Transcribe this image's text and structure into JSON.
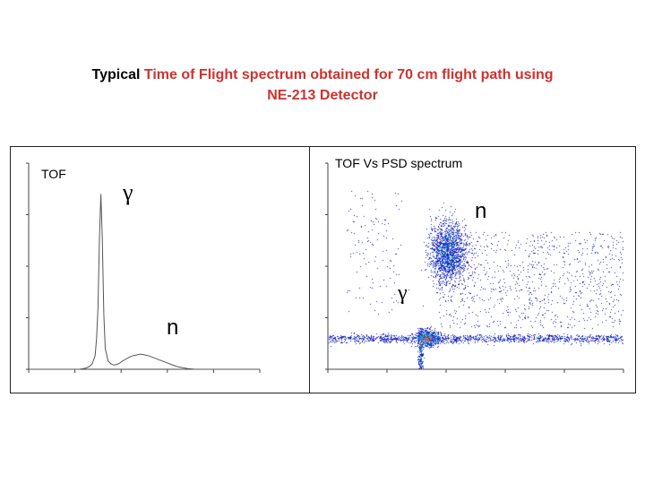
{
  "title": {
    "part1": "Typical ",
    "part2": "Time of Flight spectrum obtained for 70 cm flight path using",
    "line2": "NE-213 Detector"
  },
  "colors": {
    "title_accent": "#d0312d",
    "axis": "#444444",
    "tof_curve": "#555555"
  },
  "chart_data": [
    {
      "type": "line",
      "title": "TOF",
      "annotations": [
        {
          "text": "γ",
          "near": "peak"
        },
        {
          "text": "n",
          "near": "broad bump"
        }
      ],
      "x": [
        0,
        20,
        40,
        60,
        70,
        76,
        80,
        84,
        88,
        92,
        94,
        96,
        98,
        100,
        102,
        104,
        106,
        110,
        114,
        118,
        122,
        126,
        130,
        135,
        140,
        145,
        150,
        155,
        160,
        165,
        170,
        175,
        180,
        185,
        190,
        195,
        200,
        205,
        210,
        215,
        220,
        230,
        240,
        250,
        260,
        280,
        300,
        320
      ],
      "values": [
        0,
        0,
        0,
        0,
        0,
        1,
        2,
        4,
        8,
        20,
        45,
        90,
        190,
        255,
        190,
        80,
        30,
        12,
        8,
        6,
        7,
        9,
        12,
        15,
        18,
        20,
        21,
        22,
        21,
        20,
        18,
        16,
        14,
        12,
        10,
        8,
        6,
        4,
        3,
        2,
        1,
        0,
        0,
        0,
        0,
        0,
        0,
        0
      ],
      "xlim": [
        0,
        320
      ],
      "ylim": [
        0,
        300
      ],
      "grid": false
    },
    {
      "type": "heatmap",
      "title": "TOF Vs PSD spectrum",
      "annotations": [
        {
          "text": "n",
          "near": "upper cluster"
        },
        {
          "text": "γ",
          "near": "lower cluster"
        }
      ],
      "clusters": [
        {
          "name": "n",
          "x": 130,
          "y": 170,
          "sx": 10,
          "sy": 22,
          "count": 1800
        },
        {
          "name": "γ",
          "x": 108,
          "y": 45,
          "sx": 6,
          "sy": 6,
          "count": 700
        }
      ],
      "band_y": 45,
      "xlim": [
        0,
        320
      ],
      "ylim": [
        0,
        300
      ],
      "grid": false
    }
  ]
}
